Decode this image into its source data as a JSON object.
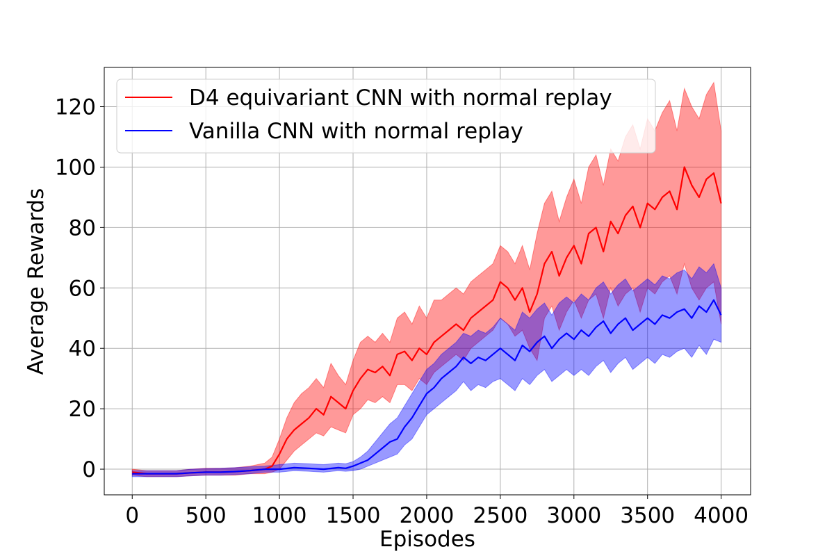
{
  "chart_data": {
    "type": "line",
    "title": "",
    "xlabel": "Episodes",
    "ylabel": "Average Rewards",
    "xlim": [
      -190,
      4200
    ],
    "ylim": [
      -8.5,
      133
    ],
    "xticks": [
      0,
      500,
      1000,
      1500,
      2000,
      2500,
      3000,
      3500,
      4000
    ],
    "yticks": [
      0,
      20,
      40,
      60,
      80,
      100,
      120
    ],
    "grid": true,
    "legend_position": "upper-left",
    "series": [
      {
        "name": "D4 equivariant CNN with normal replay",
        "color": "#ff0000",
        "band_color": "#ff0000",
        "x": [
          0,
          100,
          200,
          300,
          400,
          500,
          600,
          700,
          800,
          900,
          950,
          1000,
          1050,
          1100,
          1150,
          1200,
          1250,
          1300,
          1350,
          1400,
          1450,
          1500,
          1550,
          1600,
          1650,
          1700,
          1750,
          1800,
          1850,
          1900,
          1950,
          2000,
          2050,
          2100,
          2150,
          2200,
          2250,
          2300,
          2350,
          2400,
          2450,
          2500,
          2550,
          2600,
          2650,
          2700,
          2750,
          2800,
          2850,
          2900,
          2950,
          3000,
          3050,
          3100,
          3150,
          3200,
          3250,
          3300,
          3350,
          3400,
          3450,
          3500,
          3550,
          3600,
          3650,
          3700,
          3750,
          3800,
          3850,
          3900,
          3950,
          4000
        ],
        "mean": [
          -1,
          -1.5,
          -1.5,
          -1.5,
          -1.2,
          -1,
          -1,
          -0.8,
          -0.5,
          0,
          1,
          5,
          10,
          13,
          15,
          17,
          20,
          18,
          24,
          22,
          20,
          26,
          30,
          33,
          32,
          34,
          31,
          38,
          39,
          36,
          40,
          38,
          42,
          44,
          46,
          48,
          46,
          50,
          52,
          54,
          56,
          62,
          60,
          56,
          60,
          52,
          58,
          68,
          72,
          64,
          70,
          74,
          68,
          78,
          80,
          72,
          82,
          78,
          84,
          87,
          80,
          88,
          86,
          90,
          92,
          86,
          100,
          94,
          90,
          96,
          98,
          88
        ],
        "lower": [
          -2,
          -2.5,
          -2.5,
          -2.5,
          -2.2,
          -2,
          -2,
          -2,
          -1.5,
          -1.5,
          -1,
          0,
          3,
          6,
          8,
          10,
          12,
          11,
          14,
          13,
          12,
          18,
          20,
          23,
          22,
          24,
          22,
          28,
          28,
          26,
          30,
          28,
          32,
          34,
          36,
          38,
          36,
          40,
          42,
          44,
          46,
          50,
          48,
          44,
          46,
          40,
          36,
          50,
          54,
          46,
          52,
          56,
          50,
          56,
          58,
          50,
          60,
          54,
          58,
          60,
          52,
          60,
          58,
          62,
          64,
          58,
          68,
          60,
          56,
          60,
          62,
          48
        ],
        "upper": [
          0,
          -0.5,
          -0.5,
          -0.5,
          0,
          0.3,
          0.3,
          0.5,
          1,
          2,
          4,
          10,
          17,
          22,
          25,
          27,
          30,
          27,
          35,
          31,
          28,
          36,
          42,
          44,
          42,
          45,
          42,
          50,
          52,
          48,
          54,
          50,
          56,
          56,
          58,
          60,
          58,
          62,
          64,
          66,
          68,
          74,
          72,
          68,
          74,
          66,
          78,
          88,
          92,
          82,
          90,
          96,
          88,
          100,
          104,
          94,
          106,
          102,
          110,
          114,
          106,
          116,
          112,
          118,
          122,
          112,
          126,
          120,
          116,
          124,
          128,
          112
        ]
      },
      {
        "name": "Vanilla CNN with normal replay",
        "color": "#0000ff",
        "band_color": "#0000ff",
        "x": [
          0,
          100,
          200,
          300,
          400,
          500,
          600,
          700,
          800,
          900,
          1000,
          1100,
          1200,
          1300,
          1400,
          1450,
          1500,
          1550,
          1600,
          1650,
          1700,
          1750,
          1800,
          1850,
          1900,
          1950,
          2000,
          2050,
          2100,
          2150,
          2200,
          2250,
          2300,
          2350,
          2400,
          2450,
          2500,
          2550,
          2600,
          2650,
          2700,
          2750,
          2800,
          2850,
          2900,
          2950,
          3000,
          3050,
          3100,
          3150,
          3200,
          3250,
          3300,
          3350,
          3400,
          3450,
          3500,
          3550,
          3600,
          3650,
          3700,
          3750,
          3800,
          3850,
          3900,
          3950,
          4000
        ],
        "mean": [
          -1.5,
          -1.5,
          -1.5,
          -1.5,
          -1.2,
          -1,
          -1,
          -0.8,
          -0.5,
          0,
          0,
          0.5,
          0.3,
          0,
          0.5,
          0.3,
          1,
          2,
          3,
          5,
          7,
          9,
          10,
          14,
          17,
          21,
          25,
          27,
          30,
          32,
          34,
          37,
          35,
          37,
          36,
          38,
          40,
          38,
          36,
          41,
          39,
          42,
          44,
          40,
          43,
          45,
          43,
          46,
          44,
          47,
          49,
          45,
          48,
          50,
          46,
          48,
          50,
          48,
          51,
          50,
          52,
          53,
          50,
          54,
          52,
          56,
          51
        ],
        "lower": [
          -2.5,
          -2.5,
          -2.5,
          -2.5,
          -2.2,
          -2,
          -2,
          -1.8,
          -1.5,
          -1,
          -1,
          -0.5,
          -0.7,
          -1,
          -0.5,
          -0.7,
          -0.5,
          0,
          1,
          2,
          3,
          4,
          5,
          8,
          10,
          14,
          18,
          20,
          22,
          24,
          26,
          29,
          26,
          28,
          27,
          29,
          30,
          28,
          26,
          30,
          28,
          31,
          33,
          29,
          31,
          33,
          31,
          33,
          31,
          34,
          36,
          32,
          35,
          37,
          33,
          35,
          37,
          35,
          38,
          37,
          39,
          40,
          37,
          41,
          38,
          43,
          42
        ],
        "upper": [
          -0.5,
          -0.5,
          -0.5,
          -0.5,
          0,
          0.2,
          0.3,
          0.5,
          0.8,
          1,
          1.5,
          2,
          1.8,
          1.5,
          2,
          1.8,
          2.5,
          4,
          6,
          9,
          12,
          15,
          17,
          21,
          25,
          29,
          33,
          35,
          38,
          40,
          42,
          45,
          44,
          46,
          45,
          47,
          50,
          48,
          46,
          52,
          50,
          53,
          55,
          51,
          55,
          57,
          55,
          58,
          56,
          60,
          62,
          58,
          61,
          63,
          59,
          61,
          63,
          61,
          64,
          63,
          65,
          66,
          63,
          67,
          65,
          68,
          60
        ]
      }
    ]
  }
}
